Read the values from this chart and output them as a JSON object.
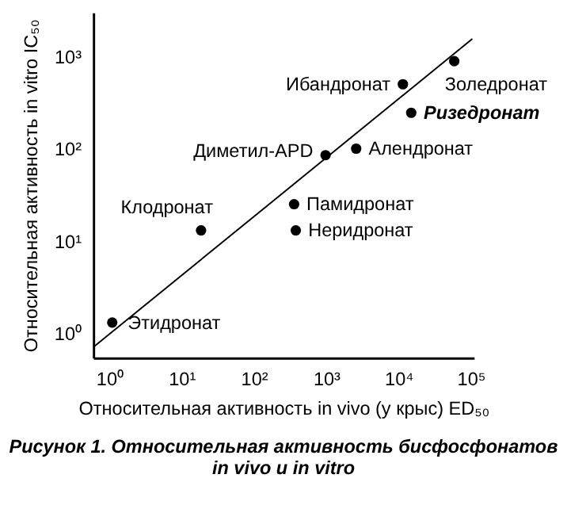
{
  "chart_data": {
    "type": "scatter",
    "title": "Рисунок 1. Относительная активность бисфосфонатов\nin vivo и in vitro",
    "xlabel": "Относительная активность in vivo (у крыс) ED₅₀",
    "ylabel": "Относительная активность in vitro IC₅₀",
    "log": "xy",
    "grid": false,
    "xlim": [
      0.6,
      110000
    ],
    "ylim": [
      0.54,
      3000
    ],
    "xticks": [
      {
        "value": 1,
        "label": "10⁰"
      },
      {
        "value": 10,
        "label": "10¹"
      },
      {
        "value": 100,
        "label": "10²"
      },
      {
        "value": 1000,
        "label": "10³"
      },
      {
        "value": 10000,
        "label": "10⁴"
      },
      {
        "value": 100000,
        "label": "10⁵"
      }
    ],
    "yticks": [
      {
        "value": 1,
        "label": "10⁰"
      },
      {
        "value": 10,
        "label": "10¹"
      },
      {
        "value": 100,
        "label": "10²"
      },
      {
        "value": 1000,
        "label": "10³"
      }
    ],
    "series": [
      {
        "marker": "circle",
        "color": "#000000",
        "x": [
          1.1,
          18.6,
          380,
          360,
          980,
          2600,
          11500,
          15000,
          59000
        ],
        "values": [
          1.3,
          13,
          13,
          25,
          85,
          100,
          500,
          245,
          890
        ]
      },
      {
        "type": "line",
        "color": "#000000",
        "x": [
          0.6,
          105000
        ],
        "values": [
          0.7,
          1550
        ]
      }
    ],
    "annotations": [
      {
        "text": "Этидронат",
        "x": 1.1,
        "y": 1.3
      },
      {
        "text": "Клодронат",
        "x": 18.6,
        "y": 13
      },
      {
        "text": "Неридронат",
        "x": 380,
        "y": 13
      },
      {
        "text": "Памидронат",
        "x": 360,
        "y": 25
      },
      {
        "text": "Диметил-APD",
        "x": 980,
        "y": 85
      },
      {
        "text": "Алендронат",
        "x": 2600,
        "y": 100
      },
      {
        "text": "Ибандронат",
        "x": 11500,
        "y": 500
      },
      {
        "text": "Ризедронат",
        "x": 15000,
        "y": 245
      },
      {
        "text": "Золедронат",
        "x": 59000,
        "y": 890
      }
    ]
  }
}
